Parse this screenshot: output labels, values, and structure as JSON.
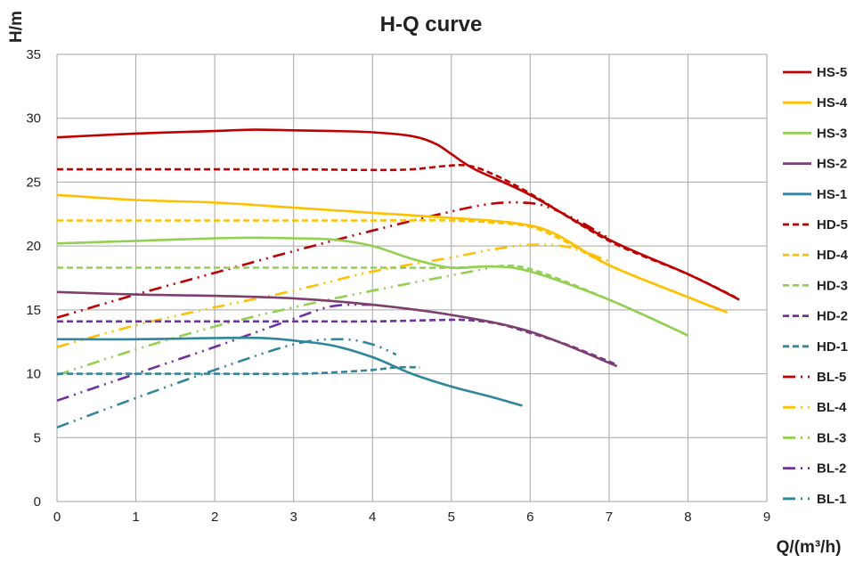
{
  "chart_data": {
    "type": "line",
    "title": "H-Q  curve",
    "xlabel": "Q/(m³/h)",
    "ylabel": "H/m",
    "xlim": [
      0,
      9
    ],
    "ylim": [
      0,
      35
    ],
    "xticks": [
      0,
      1,
      2,
      3,
      4,
      5,
      6,
      7,
      8,
      9
    ],
    "yticks": [
      0,
      5,
      10,
      15,
      20,
      25,
      30,
      35
    ],
    "grid": true,
    "legend_position": "right",
    "series": [
      {
        "name": "HS-5",
        "color": "#C00000",
        "style": "solid",
        "x": [
          0,
          1,
          2,
          2.5,
          3,
          3.5,
          4,
          4.5,
          4.8,
          5,
          5.3,
          6,
          7,
          8,
          8.65
        ],
        "y": [
          28.5,
          28.8,
          29.0,
          29.1,
          29.05,
          29.0,
          28.9,
          28.6,
          28.0,
          27.2,
          26.0,
          24.0,
          20.5,
          17.8,
          15.8
        ]
      },
      {
        "name": "HS-4",
        "color": "#FFC000",
        "style": "solid",
        "x": [
          0,
          1,
          2,
          3,
          4,
          5,
          5.8,
          6.3,
          7,
          8,
          8.5
        ],
        "y": [
          24.0,
          23.6,
          23.4,
          23.0,
          22.6,
          22.2,
          21.8,
          21.0,
          18.5,
          16.0,
          14.8
        ]
      },
      {
        "name": "HS-3",
        "color": "#92D050",
        "style": "solid",
        "x": [
          0,
          1,
          2,
          2.5,
          3,
          3.5,
          4,
          4.5,
          5,
          5.5,
          6,
          7,
          8
        ],
        "y": [
          20.2,
          20.4,
          20.6,
          20.65,
          20.6,
          20.5,
          20.0,
          19.0,
          18.3,
          18.4,
          18.0,
          15.8,
          13.0
        ]
      },
      {
        "name": "HS-2",
        "color": "#7E3F6E",
        "style": "solid",
        "x": [
          0,
          1,
          2,
          3,
          4,
          5,
          6,
          7.1
        ],
        "y": [
          16.4,
          16.2,
          16.1,
          15.9,
          15.4,
          14.6,
          13.3,
          10.6
        ]
      },
      {
        "name": "HS-1",
        "color": "#31859C",
        "style": "solid",
        "x": [
          0,
          1,
          2,
          2.6,
          3,
          3.5,
          4,
          4.5,
          5,
          5.5,
          5.9
        ],
        "y": [
          12.7,
          12.7,
          12.8,
          12.8,
          12.6,
          12.2,
          11.3,
          10.0,
          9.0,
          8.2,
          7.5
        ]
      },
      {
        "name": "HD-5",
        "color": "#C00000",
        "style": "dashed",
        "x": [
          0,
          1,
          2,
          3,
          4,
          4.5,
          4.9,
          5.2,
          5.5,
          6,
          7,
          8,
          8.6
        ],
        "y": [
          26.0,
          26.0,
          26.0,
          26.0,
          25.95,
          26.0,
          26.25,
          26.3,
          25.7,
          24.1,
          20.4,
          17.8,
          16.0
        ]
      },
      {
        "name": "HD-4",
        "color": "#FFC000",
        "style": "dashed",
        "x": [
          0,
          1,
          2,
          3,
          4,
          5,
          5.6,
          6,
          6.4,
          7,
          8,
          8.4
        ],
        "y": [
          22.0,
          22.0,
          22.0,
          22.0,
          22.0,
          22.0,
          21.8,
          21.5,
          20.5,
          18.5,
          16.0,
          15.0
        ]
      },
      {
        "name": "HD-3",
        "color": "#92D050",
        "style": "dashed",
        "x": [
          0,
          1,
          2,
          3,
          4,
          5,
          5.5,
          6,
          7,
          8
        ],
        "y": [
          18.3,
          18.3,
          18.3,
          18.3,
          18.3,
          18.3,
          18.4,
          18.2,
          15.8,
          13.0
        ]
      },
      {
        "name": "HD-2",
        "color": "#7030A0",
        "style": "dashed",
        "x": [
          0,
          1,
          2,
          3,
          4,
          4.8,
          5.2,
          5.6,
          6,
          6.5,
          7.1
        ],
        "y": [
          14.1,
          14.1,
          14.1,
          14.1,
          14.1,
          14.2,
          14.2,
          13.9,
          13.2,
          12.2,
          10.7
        ]
      },
      {
        "name": "HD-1",
        "color": "#31859C",
        "style": "dashed",
        "x": [
          0,
          1,
          2,
          3,
          3.5,
          4,
          4.3,
          4.6
        ],
        "y": [
          10.0,
          10.0,
          10.0,
          10.0,
          10.1,
          10.3,
          10.5,
          10.5
        ]
      },
      {
        "name": "BL-5",
        "color": "#C00000",
        "style": "dashdotdot",
        "x": [
          0,
          1,
          2,
          3,
          4,
          5,
          5.5,
          5.9,
          6.2,
          6.6,
          7
        ],
        "y": [
          14.4,
          16.2,
          17.9,
          19.6,
          21.2,
          22.7,
          23.3,
          23.4,
          23.1,
          22.0,
          20.6
        ]
      },
      {
        "name": "BL-4",
        "color": "#FFC000",
        "style": "dashdotdot",
        "x": [
          0,
          1,
          2,
          3,
          4,
          5,
          5.5,
          6,
          6.5,
          7
        ],
        "y": [
          12.1,
          13.8,
          15.2,
          16.5,
          18.0,
          19.1,
          19.7,
          20.1,
          19.9,
          18.8
        ]
      },
      {
        "name": "BL-3",
        "color": "#92D050",
        "style": "dashdotdot",
        "x": [
          0,
          1,
          2,
          3,
          4,
          5,
          5.5
        ],
        "y": [
          9.9,
          11.9,
          13.7,
          15.2,
          16.5,
          17.7,
          18.3
        ]
      },
      {
        "name": "BL-2",
        "color": "#7030A0",
        "style": "dashdotdot",
        "x": [
          0,
          1,
          2,
          3,
          3.5,
          4
        ],
        "y": [
          7.9,
          10.0,
          12.1,
          14.3,
          15.3,
          15.4
        ]
      },
      {
        "name": "BL-1",
        "color": "#31859C",
        "style": "dashdotdot",
        "x": [
          0,
          1,
          2,
          3,
          3.6,
          4,
          4.3
        ],
        "y": [
          5.8,
          8.1,
          10.3,
          12.3,
          12.7,
          12.3,
          11.5
        ]
      }
    ]
  }
}
